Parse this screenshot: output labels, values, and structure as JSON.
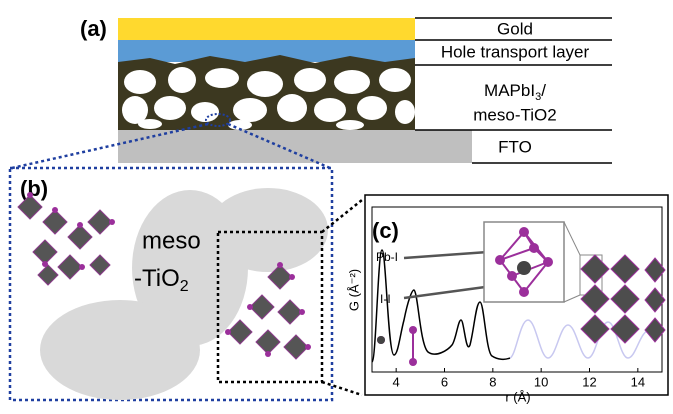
{
  "panel_a": {
    "label": "(a)",
    "layers": [
      "Gold",
      "Hole transport layer"
    ],
    "mapbi": {
      "main": "MAPbI",
      "sub": "3",
      "tail": "/"
    },
    "meso_tio2": "meso-TiO2",
    "fto": "FTO"
  },
  "panel_b": {
    "label": "(b)",
    "meso": "meso",
    "tio": "-TiO",
    "tio_sub": "2"
  },
  "panel_c": {
    "label": "(c)",
    "ylabel": "G (Å⁻²)",
    "xlabel": "r (Å)",
    "annotations": [
      "Pb-I",
      "I-I"
    ],
    "xlim": [
      3,
      15
    ],
    "xticks": [
      4,
      6,
      8,
      10,
      12,
      14
    ]
  }
}
